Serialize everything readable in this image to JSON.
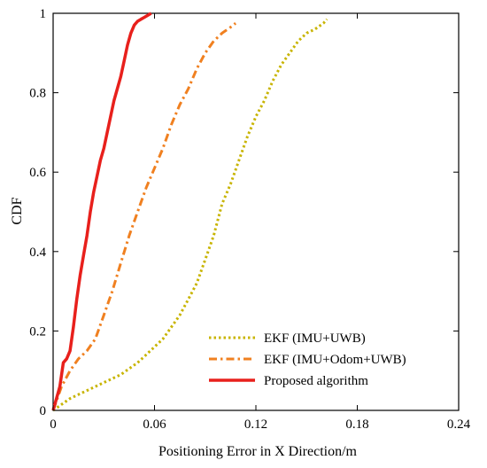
{
  "chart_data": {
    "type": "line",
    "title": "",
    "xlabel": "Positioning Error in X Direction/m",
    "ylabel": "CDF",
    "xlim": [
      0,
      0.24
    ],
    "ylim": [
      0,
      1
    ],
    "xticks": [
      0,
      0.06,
      0.12,
      0.18,
      0.24
    ],
    "xtick_labels": [
      "0",
      "0.06",
      "0.12",
      "0.18",
      "0.24"
    ],
    "yticks": [
      0,
      0.2,
      0.4,
      0.6,
      0.8,
      1
    ],
    "ytick_labels": [
      "0",
      "0.2",
      "0.4",
      "0.6",
      "0.8",
      "1"
    ],
    "grid": false,
    "legend_position": "bottom-right",
    "series": [
      {
        "name": "EKF (IMU+UWB)",
        "color": "#c8b400",
        "dash": "dotted",
        "x": [
          0,
          0.01,
          0.02,
          0.03,
          0.04,
          0.05,
          0.055,
          0.06,
          0.065,
          0.07,
          0.075,
          0.08,
          0.085,
          0.09,
          0.095,
          0.1,
          0.105,
          0.11,
          0.115,
          0.12,
          0.125,
          0.13,
          0.135,
          0.14,
          0.145,
          0.15,
          0.155,
          0.16,
          0.162
        ],
        "y": [
          0,
          0.03,
          0.05,
          0.07,
          0.09,
          0.12,
          0.14,
          0.16,
          0.18,
          0.21,
          0.24,
          0.28,
          0.32,
          0.38,
          0.44,
          0.52,
          0.57,
          0.63,
          0.69,
          0.74,
          0.78,
          0.83,
          0.87,
          0.9,
          0.93,
          0.95,
          0.96,
          0.975,
          0.985
        ]
      },
      {
        "name": "EKF (IMU+Odom+UWB)",
        "color": "#f08020",
        "dash": "dashdot",
        "x": [
          0,
          0.005,
          0.01,
          0.015,
          0.02,
          0.025,
          0.03,
          0.035,
          0.04,
          0.045,
          0.05,
          0.055,
          0.06,
          0.065,
          0.07,
          0.075,
          0.08,
          0.085,
          0.09,
          0.095,
          0.1,
          0.105,
          0.108
        ],
        "y": [
          0,
          0.06,
          0.1,
          0.13,
          0.15,
          0.18,
          0.24,
          0.3,
          0.37,
          0.44,
          0.5,
          0.56,
          0.61,
          0.66,
          0.72,
          0.77,
          0.81,
          0.86,
          0.9,
          0.93,
          0.95,
          0.965,
          0.975
        ]
      },
      {
        "name": "Proposed algorithm",
        "color": "#e8201c",
        "dash": "solid",
        "x": [
          0,
          0.002,
          0.004,
          0.006,
          0.008,
          0.01,
          0.012,
          0.014,
          0.016,
          0.018,
          0.02,
          0.022,
          0.024,
          0.026,
          0.028,
          0.03,
          0.032,
          0.034,
          0.036,
          0.038,
          0.04,
          0.042,
          0.044,
          0.046,
          0.048,
          0.05,
          0.052,
          0.054,
          0.056,
          0.058
        ],
        "y": [
          0,
          0.03,
          0.06,
          0.12,
          0.13,
          0.15,
          0.21,
          0.28,
          0.34,
          0.39,
          0.44,
          0.5,
          0.55,
          0.59,
          0.63,
          0.66,
          0.7,
          0.74,
          0.78,
          0.81,
          0.84,
          0.88,
          0.92,
          0.95,
          0.97,
          0.98,
          0.985,
          0.99,
          0.995,
          1
        ]
      }
    ]
  }
}
